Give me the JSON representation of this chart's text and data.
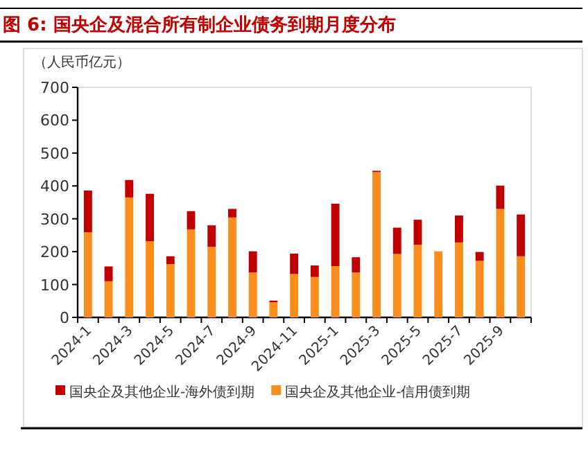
{
  "chart_data": {
    "type": "bar",
    "title": "图 6: 国央企及混合所有制企业债务到期月度分布",
    "ylabel": "（人民币亿元）",
    "categories": [
      "2024-1",
      null,
      "2024-3",
      null,
      "2024-5",
      null,
      "2024-7",
      null,
      "2024-9",
      null,
      "2024-11",
      null,
      "2025-1",
      null,
      "2025-3",
      null,
      "2025-5",
      null,
      "2025-7",
      null,
      "2025-9",
      null
    ],
    "series": [
      {
        "name": "国央企及其他企业-信用债到期",
        "color": "#f98e1f",
        "values": [
          259,
          110,
          365,
          232,
          162,
          268,
          215,
          304,
          137,
          46,
          132,
          123,
          156,
          137,
          442,
          193,
          221,
          201,
          228,
          172,
          330,
          186
        ]
      },
      {
        "name": "国央企及其他企业-海外债到期",
        "color": "#c00000",
        "values": [
          127,
          45,
          53,
          144,
          24,
          55,
          65,
          26,
          64,
          5,
          62,
          35,
          190,
          46,
          4,
          80,
          76,
          0,
          82,
          27,
          71,
          127
        ]
      }
    ],
    "stacked": true,
    "ylim": [
      0,
      700
    ],
    "yticks": [
      0,
      100,
      200,
      300,
      400,
      500,
      600,
      700
    ],
    "legend": "bottom"
  }
}
